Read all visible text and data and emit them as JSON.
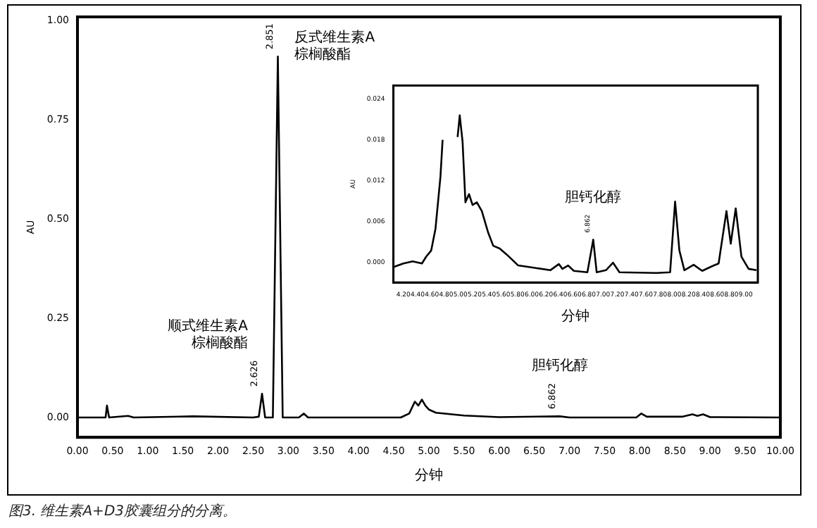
{
  "chart_data": [
    {
      "type": "line",
      "xlabel": "分钟",
      "ylabel": "AU",
      "color": "#000000",
      "grid": false,
      "legend": false,
      "marker": "none",
      "line_style": "solid",
      "x": [
        0,
        0.4,
        0.42,
        0.45,
        0.72,
        0.8,
        1.65,
        2.5,
        2.58,
        2.626,
        2.67,
        2.78,
        2.851,
        2.92,
        3.15,
        3.22,
        3.28,
        4.6,
        4.72,
        4.8,
        4.85,
        4.9,
        4.95,
        5.0,
        5.1,
        5.5,
        6.0,
        6.862,
        7.0,
        7.95,
        8.02,
        8.1,
        8.6,
        8.75,
        8.82,
        8.9,
        9.0,
        10
      ],
      "values": [
        0,
        0,
        0.03,
        0,
        0.004,
        0,
        0.003,
        0,
        0.002,
        0.06,
        0,
        0,
        0.91,
        0,
        0,
        0.01,
        0,
        0,
        0.01,
        0.04,
        0.03,
        0.045,
        0.03,
        0.02,
        0.012,
        0.005,
        0.001,
        0.003,
        0,
        0,
        0.01,
        0.002,
        0.002,
        0.008,
        0.004,
        0.008,
        0.001,
        0
      ],
      "xlim": [
        0,
        10
      ],
      "ylim": [
        -0.05,
        1.01
      ],
      "xticks": [
        {
          "value": 0,
          "label": "0.00"
        },
        {
          "value": 0.5,
          "label": "0.50"
        },
        {
          "value": 1,
          "label": "1.00"
        },
        {
          "value": 1.5,
          "label": "1.50"
        },
        {
          "value": 2,
          "label": "2.00"
        },
        {
          "value": 2.5,
          "label": "2.50"
        },
        {
          "value": 3,
          "label": "3.00"
        },
        {
          "value": 3.5,
          "label": "3.50"
        },
        {
          "value": 4,
          "label": "4.00"
        },
        {
          "value": 4.5,
          "label": "4.50"
        },
        {
          "value": 5,
          "label": "5.00"
        },
        {
          "value": 5.5,
          "label": "5.50"
        },
        {
          "value": 6,
          "label": "6.00"
        },
        {
          "value": 6.5,
          "label": "6.50"
        },
        {
          "value": 7,
          "label": "7.00"
        },
        {
          "value": 7.5,
          "label": "7.50"
        },
        {
          "value": 8,
          "label": "8.00"
        },
        {
          "value": 8.5,
          "label": "8.50"
        },
        {
          "value": 9,
          "label": "9.00"
        },
        {
          "value": 9.5,
          "label": "9.50"
        },
        {
          "value": 10,
          "label": "10.00"
        }
      ],
      "yticks": [
        {
          "value": 0,
          "label": "0.00"
        },
        0.25,
        {
          "value": 0.5,
          "label": "0.50"
        },
        0.75,
        {
          "value": 1,
          "label": "1.00"
        }
      ],
      "annotations": [
        {
          "text": "2.851",
          "x": 2.851,
          "y": 0.91
        },
        "反式维生素A\n棕榈酸酯",
        {
          "text": "2.626",
          "x": 2.626,
          "y": 0.06
        },
        "顺式维生素A\n棕榈酸酯",
        {
          "text": "6.862",
          "x": 6.862,
          "y": 0.003
        },
        "胆钙化醇",
        "图3. 维生素A+D3胶囊组分的分离。"
      ]
    },
    {
      "type": "line",
      "xlabel": "分钟",
      "ylabel": "AU",
      "color": "#000000",
      "grid": false,
      "legend": false,
      "marker": "none",
      "line_style": "solid",
      "x": [
        4.07,
        4.2,
        4.33,
        4.46,
        4.52,
        4.59,
        4.65,
        4.72,
        4.75,
        4.78,
        4.94,
        4.96,
        4.99,
        5.03,
        5.07,
        5.12,
        5.17,
        5.23,
        5.3,
        5.39,
        5.46,
        5.55,
        5.65,
        5.81,
        6.01,
        6.26,
        6.38,
        6.43,
        6.51,
        6.59,
        6.78,
        6.862,
        6.91,
        7.04,
        7.14,
        7.23,
        7.75,
        7.94,
        8.01,
        8.07,
        8.14,
        8.27,
        8.39,
        8.51,
        8.62,
        8.73,
        8.79,
        8.86,
        8.94,
        9.04,
        9.15
      ],
      "values": [
        -0.0007,
        -0.0002,
        0.0001,
        -0.0002,
        0.0008,
        0.0017,
        0.0049,
        0.0126,
        0.018,
        null,
        null,
        0.0184,
        0.0216,
        0.0177,
        0.0088,
        0.01,
        0.0084,
        0.0088,
        0.0075,
        0.0043,
        0.0024,
        0.002,
        0.0011,
        -0.0005,
        -0.0008,
        -0.0012,
        -0.0003,
        -0.001,
        -0.0005,
        -0.0013,
        -0.0015,
        0.0033,
        -0.0015,
        -0.0012,
        -0.0001,
        -0.0015,
        -0.0016,
        -0.0015,
        0.0089,
        0.0017,
        -0.0012,
        -0.0004,
        -0.0013,
        -0.0007,
        -0.0002,
        0.0075,
        0.0027,
        0.0079,
        0.0008,
        -0.001,
        -0.0012
      ],
      "xlim": [
        4.06,
        9.17
      ],
      "ylim": [
        -0.003,
        0.026
      ],
      "xticks": [
        {
          "value": 4.2,
          "label": "4.20"
        },
        {
          "value": 4.4,
          "label": "4.40"
        },
        {
          "value": 4.6,
          "label": "4.60"
        },
        {
          "value": 4.8,
          "label": "4.80"
        },
        {
          "value": 5,
          "label": "5.00"
        },
        {
          "value": 5.2,
          "label": "5.20"
        },
        {
          "value": 5.4,
          "label": "5.40"
        },
        {
          "value": 5.6,
          "label": "5.60"
        },
        {
          "value": 5.8,
          "label": "5.80"
        },
        {
          "value": 6,
          "label": "6.00"
        },
        {
          "value": 6.2,
          "label": "6.20"
        },
        {
          "value": 6.4,
          "label": "6.40"
        },
        {
          "value": 6.6,
          "label": "6.60"
        },
        {
          "value": 6.8,
          "label": "6.80"
        },
        {
          "value": 7,
          "label": "7.00"
        },
        {
          "value": 7.2,
          "label": "7.20"
        },
        {
          "value": 7.4,
          "label": "7.40"
        },
        {
          "value": 7.6,
          "label": "7.60"
        },
        {
          "value": 7.8,
          "label": "7.80"
        },
        {
          "value": 8,
          "label": "8.00"
        },
        {
          "value": 8.2,
          "label": "8.20"
        },
        {
          "value": 8.4,
          "label": "8.40"
        },
        {
          "value": 8.6,
          "label": "8.60"
        },
        {
          "value": 8.8,
          "label": "8.80"
        },
        {
          "value": 9,
          "label": "9.00"
        }
      ],
      "yticks": [
        {
          "value": 0,
          "label": "0.000"
        },
        0.006,
        0.012,
        0.018,
        0.024
      ],
      "annotations": [
        {
          "text": "6.862",
          "x": 6.862,
          "y": 0.0033
        },
        "胆钙化醇"
      ]
    }
  ]
}
